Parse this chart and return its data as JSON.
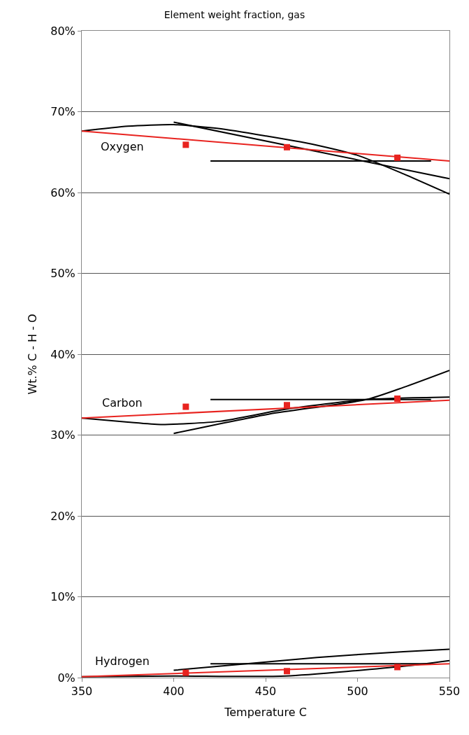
{
  "chart_data": {
    "type": "line",
    "title": "Element weight fraction, gas",
    "xlabel": "Temperature C",
    "ylabel": "Wt.% C - H - O",
    "xlim": [
      350,
      550
    ],
    "xticks": [
      350,
      400,
      450,
      500,
      550
    ],
    "ylim": [
      0,
      80
    ],
    "yticks": [
      {
        "value": 0,
        "label": "0%"
      },
      {
        "value": 10,
        "label": "10%"
      },
      {
        "value": 20,
        "label": "20%"
      },
      {
        "value": 30,
        "label": "30%"
      },
      {
        "value": 40,
        "label": "40%"
      },
      {
        "value": 50,
        "label": "50%"
      },
      {
        "value": 60,
        "label": "60%"
      },
      {
        "value": 70,
        "label": "70%"
      },
      {
        "value": 80,
        "label": "80%"
      }
    ],
    "grid": "y",
    "legend": false,
    "series": [
      {
        "color": "#000000",
        "x": [
          350,
          375,
          400,
          425,
          450,
          475,
          500,
          525,
          550
        ],
        "values": [
          67.6,
          68.2,
          68.4,
          67.9,
          67.0,
          66.0,
          64.6,
          62.3,
          59.8
        ]
      },
      {
        "color": "#000000",
        "x": [
          400,
          550
        ],
        "values": [
          68.7,
          61.7
        ]
      },
      {
        "color": "#000000",
        "x": [
          420,
          540
        ],
        "values": [
          63.9,
          63.9
        ]
      },
      {
        "name": "Oxygen",
        "color": "#e8231f",
        "x": [
          350,
          550
        ],
        "values": [
          67.6,
          63.9
        ]
      },
      {
        "type": "scatter",
        "marker": "square",
        "color": "#e8231f",
        "x": [
          406.6,
          461.6,
          521.7
        ],
        "values": [
          65.9,
          65.6,
          64.3
        ]
      },
      {
        "color": "#000000",
        "x": [
          350,
          375,
          393,
          425,
          461,
          505,
          550
        ],
        "values": [
          32.1,
          31.6,
          31.3,
          31.7,
          33.2,
          34.4,
          34.7
        ]
      },
      {
        "color": "#000000",
        "x": [
          400,
          452,
          505,
          525,
          550
        ],
        "values": [
          30.2,
          32.6,
          34.4,
          35.9,
          38.0
        ]
      },
      {
        "color": "#000000",
        "x": [
          420,
          540
        ],
        "values": [
          34.4,
          34.4
        ]
      },
      {
        "name": "Carbon",
        "color": "#e8231f",
        "x": [
          350,
          550
        ],
        "values": [
          32.1,
          34.3
        ]
      },
      {
        "type": "scatter",
        "marker": "square",
        "color": "#e8231f",
        "x": [
          406.6,
          461.6,
          521.7
        ],
        "values": [
          33.5,
          33.7,
          34.5
        ]
      },
      {
        "color": "#000000",
        "x": [
          400,
          478,
          525,
          550
        ],
        "values": [
          0.9,
          2.5,
          3.2,
          3.5
        ]
      },
      {
        "color": "#000000",
        "x": [
          420,
          540
        ],
        "values": [
          1.7,
          1.7
        ]
      },
      {
        "color": "#000000",
        "x": [
          350,
          400,
          461,
          525,
          550
        ],
        "values": [
          0.1,
          0.2,
          0.2,
          1.4,
          2.1
        ]
      },
      {
        "name": "Hydrogen",
        "color": "#e8231f",
        "x": [
          350,
          550
        ],
        "values": [
          0.1,
          1.7
        ]
      },
      {
        "type": "scatter",
        "marker": "square",
        "color": "#e8231f",
        "x": [
          406.6,
          461.6,
          521.7
        ],
        "values": [
          0.6,
          0.8,
          1.3
        ]
      }
    ]
  }
}
